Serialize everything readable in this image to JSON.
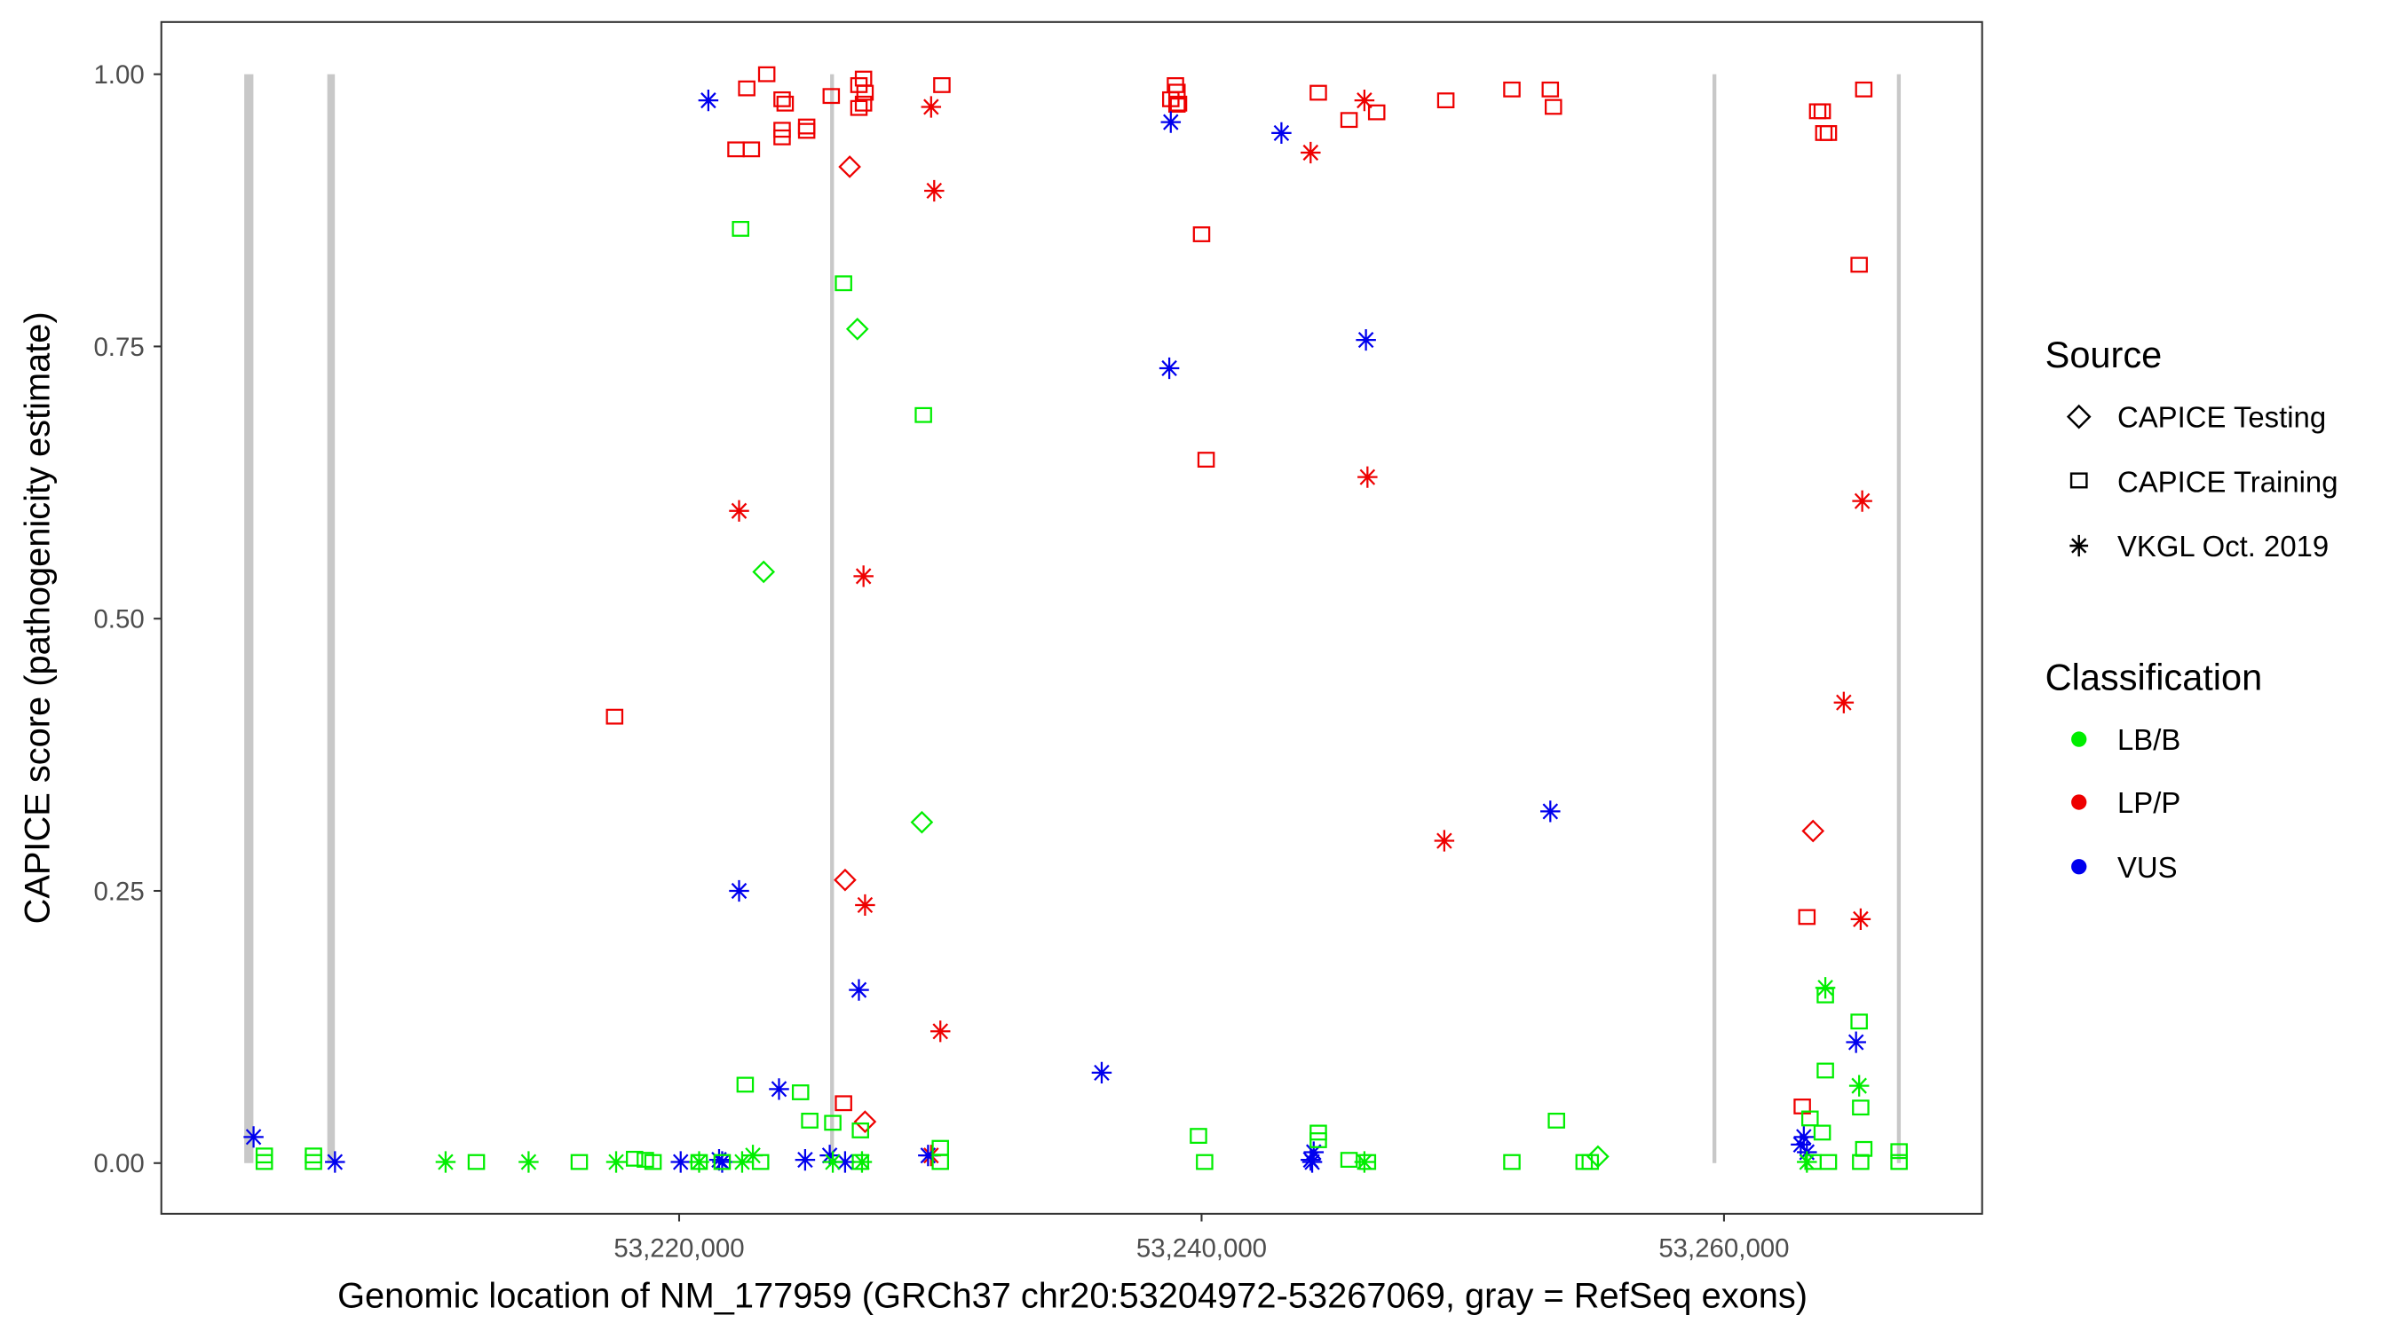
{
  "chart_data": {
    "type": "scatter",
    "xlabel": "Genomic location of NM_177959 (GRCh37 chr20:53204972-53267069, gray = RefSeq exons)",
    "ylabel": "CAPICE score (pathogenicity estimate)",
    "xlim": [
      53199900,
      53270300
    ],
    "ylim": [
      -0.046,
      1.05
    ],
    "x_ticks": [
      53220000,
      53240000,
      53260000
    ],
    "x_tick_labels": [
      "53,220,000",
      "53,240,000",
      "53,260,000"
    ],
    "y_ticks": [
      0,
      0.25,
      0.5,
      0.75,
      1.0
    ],
    "y_tick_labels": [
      "0.00",
      "0.25",
      "0.50",
      "0.75",
      "1.00"
    ],
    "grid": false,
    "exons": [
      [
        53203350,
        53203700
      ],
      [
        53206530,
        53206820
      ],
      [
        53225780,
        53225870
      ],
      [
        53259560,
        53259620
      ],
      [
        53266620,
        53266680
      ]
    ],
    "colors": {
      "LB/B": "#00ee00",
      "LP/P": "#ee0000",
      "VUS": "#0000ee",
      "exon": "#c8c8c8"
    },
    "legend": {
      "placement": "right",
      "source_title": "Source",
      "source_items": [
        {
          "label": "CAPICE Testing",
          "shape": "diamond"
        },
        {
          "label": "CAPICE Training",
          "shape": "square"
        },
        {
          "label": "VKGL Oct. 2019",
          "shape": "asterisk"
        }
      ],
      "class_title": "Classification",
      "class_items": [
        {
          "label": "LB/B",
          "color": "#00ee00"
        },
        {
          "label": "LP/P",
          "color": "#ee0000"
        },
        {
          "label": "VUS",
          "color": "#0000ee"
        }
      ]
    },
    "series": [
      {
        "source": "CAPICE Training",
        "shape": "square",
        "classification": "LP/P",
        "points": [
          [
            53222588,
            0.987
          ],
          [
            53223353,
            1.0
          ],
          [
            53223941,
            0.977
          ],
          [
            53224059,
            0.973
          ],
          [
            53224882,
            0.952
          ],
          [
            53224882,
            0.948
          ],
          [
            53223941,
            0.949
          ],
          [
            53223941,
            0.942
          ],
          [
            53222176,
            0.931
          ],
          [
            53222765,
            0.931
          ],
          [
            53225823,
            0.98
          ],
          [
            53226882,
            0.99
          ],
          [
            53227058,
            0.996
          ],
          [
            53227117,
            0.983
          ],
          [
            53227058,
            0.973
          ],
          [
            53226882,
            0.969
          ],
          [
            53230058,
            0.99
          ],
          [
            53239000,
            0.99
          ],
          [
            53239058,
            0.984
          ],
          [
            53238822,
            0.977
          ],
          [
            53239117,
            0.973
          ],
          [
            53239058,
            0.972
          ],
          [
            53244469,
            0.983
          ],
          [
            53245646,
            0.958
          ],
          [
            53246704,
            0.965
          ],
          [
            53249351,
            0.976
          ],
          [
            53251880,
            0.986
          ],
          [
            53253351,
            0.986
          ],
          [
            53253469,
            0.97
          ],
          [
            53263586,
            0.966
          ],
          [
            53263762,
            0.966
          ],
          [
            53263821,
            0.946
          ],
          [
            53263997,
            0.946
          ],
          [
            53265351,
            0.986
          ],
          [
            53265174,
            0.825
          ],
          [
            53240000,
            0.853
          ],
          [
            53240175,
            0.646
          ],
          [
            53217530,
            0.41
          ],
          [
            53226293,
            0.055
          ],
          [
            53263174,
            0.226
          ],
          [
            53262997,
            0.052
          ]
        ]
      },
      {
        "source": "VKGL Oct. 2019",
        "shape": "asterisk",
        "classification": "LP/P",
        "points": [
          [
            53229646,
            0.97
          ],
          [
            53229764,
            0.893
          ],
          [
            53222294,
            0.599
          ],
          [
            53227058,
            0.539
          ],
          [
            53244175,
            0.928
          ],
          [
            53246234,
            0.976
          ],
          [
            53246351,
            0.63
          ],
          [
            53249292,
            0.296
          ],
          [
            53265292,
            0.608
          ],
          [
            53264586,
            0.423
          ],
          [
            53265233,
            0.224
          ],
          [
            53227117,
            0.237
          ],
          [
            53230000,
            0.121
          ],
          [
            53229646,
            0.007
          ]
        ]
      },
      {
        "source": "CAPICE Testing",
        "shape": "diamond",
        "classification": "LP/P",
        "points": [
          [
            53226529,
            0.915
          ],
          [
            53226353,
            0.26
          ],
          [
            53227117,
            0.038
          ],
          [
            53263409,
            0.305
          ]
        ]
      },
      {
        "source": "VKGL Oct. 2019",
        "shape": "asterisk",
        "classification": "VUS",
        "points": [
          [
            53221118,
            0.976
          ],
          [
            53238822,
            0.956
          ],
          [
            53243057,
            0.946
          ],
          [
            53238764,
            0.73
          ],
          [
            53246293,
            0.756
          ],
          [
            53253351,
            0.323
          ],
          [
            53222294,
            0.25
          ],
          [
            53226882,
            0.159
          ],
          [
            53236176,
            0.083
          ],
          [
            53223823,
            0.068
          ],
          [
            53265056,
            0.111
          ],
          [
            53203707,
            0.024
          ],
          [
            53206824,
            0.001
          ],
          [
            53220059,
            0.001
          ],
          [
            53221647,
            0.001
          ],
          [
            53221529,
            0.003
          ],
          [
            53224823,
            0.003
          ],
          [
            53225764,
            0.007
          ],
          [
            53226353,
            0.001
          ],
          [
            53229529,
            0.007
          ],
          [
            53244175,
            0.003
          ],
          [
            53244293,
            0.01
          ],
          [
            53244234,
            0.001
          ],
          [
            53262939,
            0.017
          ],
          [
            53263056,
            0.024
          ],
          [
            53263174,
            0.01
          ]
        ]
      },
      {
        "source": "CAPICE Training",
        "shape": "square",
        "classification": "LB/B",
        "points": [
          [
            53222353,
            0.858
          ],
          [
            53226293,
            0.808
          ],
          [
            53229351,
            0.687
          ],
          [
            53222529,
            0.072
          ],
          [
            53224647,
            0.065
          ],
          [
            53225000,
            0.039
          ],
          [
            53225882,
            0.037
          ],
          [
            53226941,
            0.03
          ],
          [
            53230000,
            0.014
          ],
          [
            53239881,
            0.025
          ],
          [
            53244469,
            0.028
          ],
          [
            53253586,
            0.039
          ],
          [
            53263880,
            0.154
          ],
          [
            53263880,
            0.085
          ],
          [
            53265174,
            0.13
          ],
          [
            53265233,
            0.051
          ],
          [
            53263292,
            0.041
          ],
          [
            53263762,
            0.028
          ],
          [
            53212236,
            0.001
          ],
          [
            53216177,
            0.001
          ],
          [
            53218294,
            0.004
          ],
          [
            53218706,
            0.003
          ],
          [
            53219000,
            0.001
          ],
          [
            53220765,
            0.001
          ],
          [
            53221647,
            0.001
          ],
          [
            53223117,
            0.001
          ],
          [
            53226941,
            0.001
          ],
          [
            53230000,
            0.001
          ],
          [
            53240116,
            0.001
          ],
          [
            53244469,
            0.021
          ],
          [
            53245646,
            0.003
          ],
          [
            53246351,
            0.001
          ],
          [
            53251880,
            0.001
          ],
          [
            53254645,
            0.001
          ],
          [
            53254880,
            0.001
          ],
          [
            53265351,
            0.013
          ],
          [
            53265233,
            0.001
          ],
          [
            53266703,
            0.011
          ],
          [
            53266703,
            0.001
          ],
          [
            53204119,
            0.007
          ],
          [
            53204119,
            0.001
          ],
          [
            53206001,
            0.007
          ],
          [
            53206001,
            0.001
          ],
          [
            53263997,
            0.001
          ],
          [
            53263409,
            0.001
          ]
        ]
      },
      {
        "source": "VKGL Oct. 2019",
        "shape": "asterisk",
        "classification": "LB/B",
        "points": [
          [
            53211059,
            0.001
          ],
          [
            53214236,
            0.001
          ],
          [
            53217588,
            0.001
          ],
          [
            53220765,
            0.001
          ],
          [
            53222823,
            0.007
          ],
          [
            53222412,
            0.001
          ],
          [
            53225882,
            0.001
          ],
          [
            53227000,
            0.001
          ],
          [
            53263880,
            0.161
          ],
          [
            53265174,
            0.071
          ],
          [
            53263174,
            0.001
          ],
          [
            53246234,
            0.001
          ]
        ]
      },
      {
        "source": "CAPICE Testing",
        "shape": "diamond",
        "classification": "LB/B",
        "points": [
          [
            53226823,
            0.766
          ],
          [
            53223235,
            0.543
          ],
          [
            53229292,
            0.313
          ],
          [
            53255174,
            0.006
          ]
        ]
      }
    ]
  }
}
